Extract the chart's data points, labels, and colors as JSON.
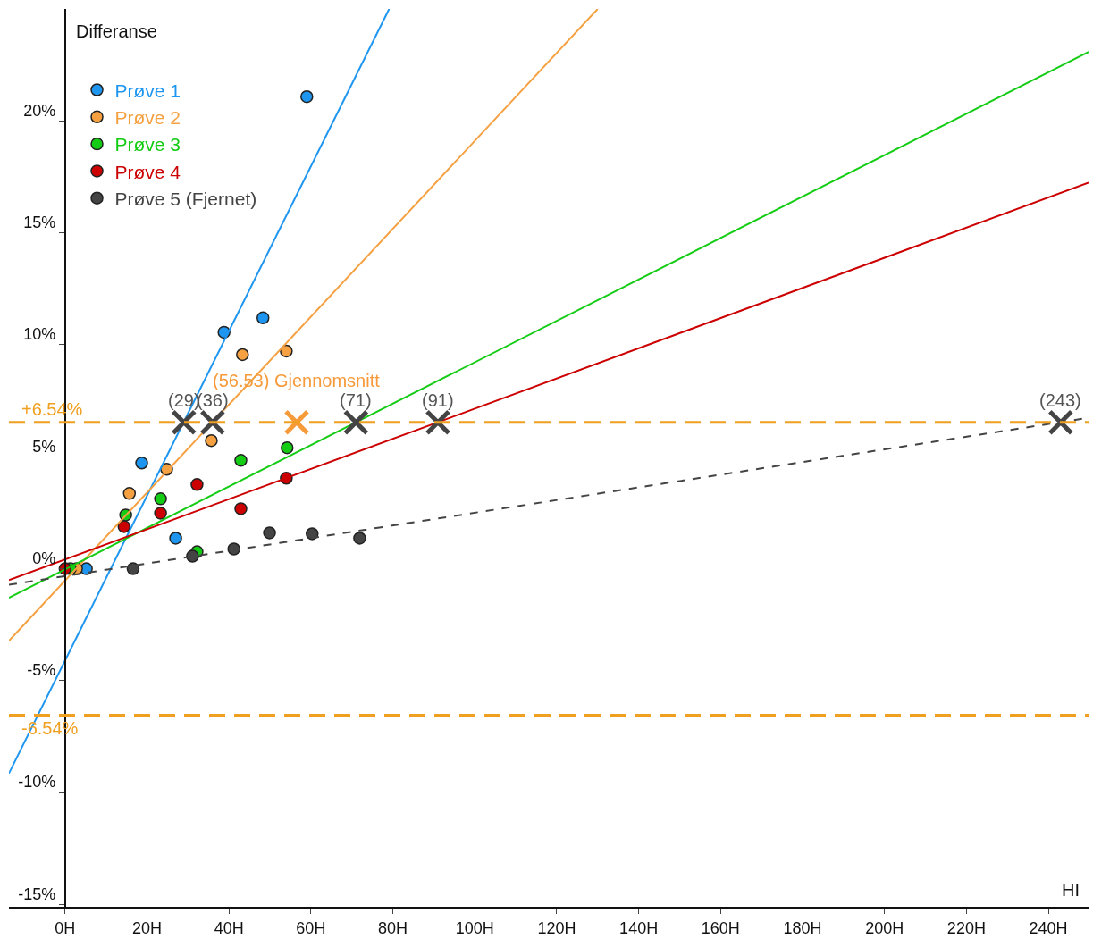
{
  "chart_data": {
    "type": "scatter",
    "xlabel": "HI",
    "ylabel": "Differanse",
    "xlim": [
      -13.7,
      249.8
    ],
    "ylim": [
      -15.1,
      25
    ],
    "xticks": [
      {
        "value": 0,
        "label": "0H"
      },
      {
        "value": 20,
        "label": "20H"
      },
      {
        "value": 40,
        "label": "40H"
      },
      {
        "value": 60,
        "label": "60H"
      },
      {
        "value": 80,
        "label": "80H"
      },
      {
        "value": 100,
        "label": "100H"
      },
      {
        "value": 120,
        "label": "120H"
      },
      {
        "value": 140,
        "label": "140H"
      },
      {
        "value": 160,
        "label": "160H"
      },
      {
        "value": 180,
        "label": "180H"
      },
      {
        "value": 200,
        "label": "200H"
      },
      {
        "value": 220,
        "label": "220H"
      },
      {
        "value": 240,
        "label": "240H"
      }
    ],
    "yticks": [
      {
        "value": -15,
        "label": "-15%"
      },
      {
        "value": -10,
        "label": "-10%"
      },
      {
        "value": -5,
        "label": "-5%"
      },
      {
        "value": 0,
        "label": "0%"
      },
      {
        "value": 5,
        "label": "5%"
      },
      {
        "value": 10,
        "label": "10%"
      },
      {
        "value": 15,
        "label": "15%"
      },
      {
        "value": 20,
        "label": "20%"
      }
    ],
    "grid": false,
    "legend": "top left",
    "marker": "circle",
    "series": [
      {
        "name": "Prøve 1",
        "color": "#1e96f0",
        "x": [
          5.2,
          18.7,
          27.0,
          38.8,
          48.3,
          59.0
        ],
        "values": [
          0,
          4.72,
          1.36,
          10.56,
          11.2,
          21.08
        ]
      },
      {
        "name": "Prøve 2",
        "color": "#f5a142",
        "x": [
          2.8,
          15.7,
          24.8,
          35.7,
          43.3,
          54.0
        ],
        "values": [
          0,
          3.36,
          4.44,
          5.72,
          9.56,
          9.72
        ]
      },
      {
        "name": "Prøve 3",
        "color": "#14cc14",
        "x": [
          1.3,
          14.8,
          23.3,
          32.2,
          42.9,
          54.2
        ],
        "values": [
          0,
          2.4,
          3.12,
          0.76,
          4.84,
          5.4
        ]
      },
      {
        "name": "Prøve 4",
        "color": "#cc0000",
        "x": [
          0,
          14.4,
          23.3,
          32.2,
          42.9,
          54.0
        ],
        "values": [
          0,
          1.88,
          2.48,
          3.76,
          2.68,
          4.04
        ]
      },
      {
        "name": "Prøve 5 (Fjernet)",
        "color": "#444444",
        "x": [
          16.6,
          31.1,
          41.2,
          49.9,
          60.3,
          71.9
        ],
        "values": [
          0,
          0.56,
          0.88,
          1.6,
          1.56,
          1.36
        ]
      },
      {
        "type": "line",
        "marker": "none",
        "color": "#1e96f0",
        "x": [
          -13.7,
          79.1
        ],
        "values": [
          -9.14,
          25
        ]
      },
      {
        "type": "line",
        "marker": "none",
        "color": "#f5a142",
        "x": [
          -13.7,
          130
        ],
        "values": [
          -3.22,
          25
        ]
      },
      {
        "type": "line",
        "marker": "none",
        "color": "#14cc14",
        "x": [
          -13.7,
          249.8
        ],
        "values": [
          -1.3,
          23.08
        ]
      },
      {
        "type": "line",
        "marker": "none",
        "color": "#cc0000",
        "x": [
          -13.7,
          249.8
        ],
        "values": [
          -0.51,
          17.24
        ]
      },
      {
        "type": "line",
        "marker": "none",
        "line_style": "dashed",
        "color": "#444444",
        "x": [
          -13.7,
          249.8
        ],
        "values": [
          -0.72,
          6.74
        ]
      },
      {
        "marker": "cross",
        "color": "#444444",
        "x": [
          29,
          36,
          71,
          91,
          243
        ],
        "values": [
          6.54,
          6.54,
          6.54,
          6.54,
          6.54
        ]
      },
      {
        "marker": "cross",
        "color": "#f79a3a",
        "x": [
          56.53
        ],
        "values": [
          6.54
        ]
      }
    ],
    "ref_lines": [
      {
        "axis": "y",
        "value": 6.54,
        "label": "+6.54%",
        "color": "#f0a020",
        "line_style": "dashed"
      },
      {
        "axis": "y",
        "value": -6.54,
        "label": "-6.54%",
        "color": "#f0a020",
        "line_style": "dashed"
      }
    ],
    "annotations": [
      {
        "text": "(29)",
        "x": 29,
        "y": 6.54
      },
      {
        "text": "(36)",
        "x": 36,
        "y": 6.54
      },
      {
        "text": "(56.53) Gjennomsnitt",
        "x": 56.53,
        "y": 6.54
      },
      {
        "text": "(71)",
        "x": 71,
        "y": 6.54
      },
      {
        "text": "(91)",
        "x": 91,
        "y": 6.54
      },
      {
        "text": "(243)",
        "x": 243,
        "y": 6.54
      }
    ]
  }
}
